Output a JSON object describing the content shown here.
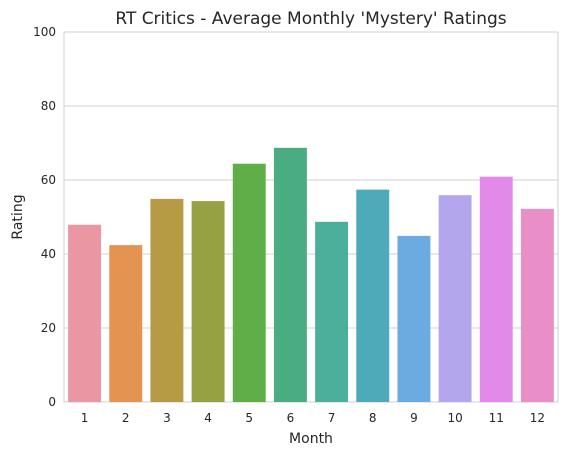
{
  "chart_data": {
    "type": "bar",
    "title": "RT Critics - Average Monthly 'Mystery' Ratings",
    "xlabel": "Month",
    "ylabel": "Rating",
    "categories": [
      "1",
      "2",
      "3",
      "4",
      "5",
      "6",
      "7",
      "8",
      "9",
      "10",
      "11",
      "12"
    ],
    "values": [
      47.9,
      42.4,
      54.9,
      54.3,
      64.4,
      68.7,
      48.7,
      57.4,
      44.9,
      55.9,
      60.9,
      52.2
    ],
    "ylim": [
      0,
      100
    ],
    "yticks": [
      0,
      20,
      40,
      60,
      80,
      100
    ],
    "grid": true,
    "colors": [
      "#ea96a3",
      "#e49350",
      "#b69a44",
      "#96a143",
      "#5fae47",
      "#4aad81",
      "#4caf9b",
      "#4ea9b8",
      "#6babdf",
      "#b4a6ed",
      "#e18ae9",
      "#e88fc7"
    ]
  }
}
